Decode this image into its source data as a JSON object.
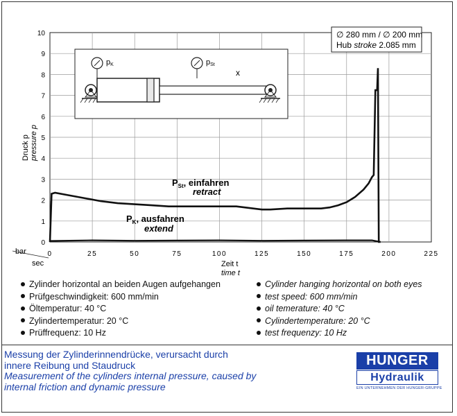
{
  "chart_data": {
    "type": "line",
    "ylim": [
      0,
      10
    ],
    "xlim": [
      0,
      225
    ],
    "y_ticks": [
      "0",
      "1",
      "2",
      "3",
      "4",
      "5",
      "6",
      "7",
      "8",
      "9",
      "10"
    ],
    "x_ticks": [
      "0",
      "25",
      "50",
      "75",
      "100",
      "125",
      "150",
      "175",
      "200",
      "225"
    ],
    "ylabel_de": "Druck p",
    "ylabel_en": "pressure p",
    "y_unit": "bar",
    "xlabel_de": "Zeit t",
    "xlabel_en": "time t",
    "x_unit": "sec",
    "grid": true,
    "series": [
      {
        "name": "P_St einfahren / retract",
        "x": [
          0,
          1,
          3,
          10,
          20,
          30,
          40,
          50,
          60,
          70,
          80,
          90,
          100,
          110,
          115,
          120,
          125,
          130,
          140,
          150,
          160,
          165,
          170,
          175,
          180,
          185,
          188,
          190,
          191,
          192,
          193,
          193.5,
          194,
          195
        ],
        "y": [
          0,
          2.3,
          2.35,
          2.25,
          2.1,
          1.95,
          1.85,
          1.8,
          1.75,
          1.7,
          1.7,
          1.7,
          1.7,
          1.7,
          1.65,
          1.6,
          1.55,
          1.55,
          1.6,
          1.6,
          1.6,
          1.65,
          1.75,
          1.9,
          2.15,
          2.5,
          2.8,
          3.1,
          3.2,
          7.25,
          7.25,
          8.3,
          0,
          0
        ]
      },
      {
        "name": "P_K ausfahren / extend",
        "x": [
          0,
          25,
          50,
          75,
          100,
          125,
          150,
          175,
          190,
          195
        ],
        "y": [
          0.05,
          0.08,
          0.06,
          0.07,
          0.08,
          0.06,
          0.07,
          0.08,
          0.08,
          0
        ]
      }
    ],
    "annotations": {
      "pst_label": "P",
      "pst_sub": "St",
      "pst_de": ",  einfahren",
      "pst_en": "retract",
      "pk_label": "P",
      "pk_sub": "K",
      "pk_de": ",  ausfahren",
      "pk_en": "extend"
    },
    "info_box": {
      "line1": "∅ 280 mm / ∅ 200 mm",
      "line2_de": "Hub",
      "line2_en": "stroke",
      "line2_val": "2.085 mm"
    },
    "diagram": {
      "pk": "p",
      "pk_sub": "K",
      "pst": "p",
      "pst_sub": "St",
      "x": "x"
    }
  },
  "notes_de": [
    "Zylinder horizontal an beiden Augen aufgehangen",
    "Prüfgeschwindigkeit: 600 mm/min",
    "Öltemperatur:  40 °C",
    "Zylindertemperatur:  20 °C",
    "Prüffrequenz: 10 Hz"
  ],
  "notes_en": [
    "Cylinder hanging horizontal on both eyes",
    "test speed: 600 mm/min",
    "oil temerature:  40 °C",
    "Cylindertemperature:  20 °C",
    "test frequenzy: 10 Hz"
  ],
  "caption": {
    "de_line1": "Messung der Zylinderinnendrücke, verursacht durch",
    "de_line2": "innere Reibung und Staudruck",
    "en_line1": "Measurement of the cylinders internal pressure, caused by",
    "en_line2": "internal friction and dynamic pressure"
  },
  "logo": {
    "line1": "HUNGER",
    "line2": "Hydraulik",
    "sub": "EIN UNTERNEHMEN DER HUNGER-GRUPPE"
  },
  "colors": {
    "caption": "#1a3fa8",
    "logo": "#1a3fa8",
    "line": "#111111"
  }
}
